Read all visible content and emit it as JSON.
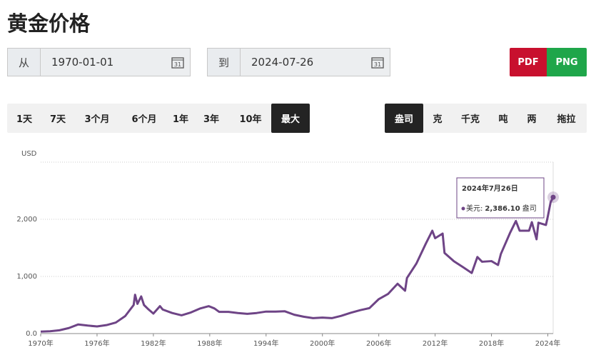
{
  "header": {
    "title": "黄金价格"
  },
  "controls": {
    "from_label": "从",
    "from_date": "1970-01-01",
    "to_label": "到",
    "to_date": "2024-07-26",
    "calendar_day": "31",
    "export": [
      "PDF",
      "PNG"
    ],
    "ranges": [
      "1天",
      "7天",
      "3个月",
      "6个月",
      "1年",
      "3年",
      "10年",
      "最大"
    ],
    "active_range": "最大",
    "units": [
      "盎司",
      "克",
      "千克",
      "吨",
      "两",
      "拖拉"
    ],
    "active_unit": "盎司"
  },
  "chart_data": {
    "type": "line",
    "y_label": "USD",
    "x": [
      1970,
      1971,
      1972,
      1973,
      1974,
      1975,
      1976,
      1977,
      1978,
      1979,
      1979.9,
      1980.05,
      1980.3,
      1980.7,
      1981,
      1981.5,
      1982,
      1982.7,
      1983,
      1984,
      1985,
      1986,
      1987,
      1987.9,
      1988.5,
      1989,
      1990,
      1991,
      1992,
      1993,
      1994,
      1995,
      1996,
      1997,
      1998,
      1999,
      2000,
      2001,
      2002,
      2003,
      2004,
      2005,
      2006,
      2007,
      2008,
      2008.8,
      2009,
      2010,
      2011,
      2011.7,
      2012,
      2012.8,
      2013,
      2014,
      2015,
      2015.9,
      2016.5,
      2017,
      2018,
      2018.7,
      2019,
      2020,
      2020.6,
      2021,
      2022,
      2022.3,
      2022.8,
      2023,
      2023.8,
      2024,
      2024.3,
      2024.57
    ],
    "series": [
      {
        "name": "美元",
        "color": "#6e4486",
        "values": [
          35,
          40,
          58,
          97,
          160,
          140,
          125,
          148,
          193,
          306,
          500,
          680,
          520,
          650,
          500,
          420,
          350,
          480,
          420,
          360,
          320,
          370,
          440,
          480,
          440,
          380,
          380,
          360,
          345,
          360,
          385,
          385,
          390,
          330,
          295,
          270,
          280,
          270,
          310,
          363,
          409,
          445,
          603,
          695,
          872,
          750,
          972,
          1224,
          1571,
          1800,
          1669,
          1750,
          1411,
          1266,
          1160,
          1060,
          1340,
          1257,
          1268,
          1200,
          1393,
          1770,
          1970,
          1800,
          1800,
          1950,
          1650,
          1940,
          1900,
          2050,
          2300,
          2386.1
        ]
      }
    ],
    "xlim": [
      1970,
      2024.57
    ],
    "xticks": [
      {
        "value": 1970,
        "label": "1970年"
      },
      {
        "value": 1976,
        "label": "1976年"
      },
      {
        "value": 1982,
        "label": "1982年"
      },
      {
        "value": 1988,
        "label": "1988年"
      },
      {
        "value": 1994,
        "label": "1994年"
      },
      {
        "value": 2000,
        "label": "2000年"
      },
      {
        "value": 2006,
        "label": "2006年"
      },
      {
        "value": 2012,
        "label": "2012年"
      },
      {
        "value": 2018,
        "label": "2018年"
      },
      {
        "value": 2024,
        "label": "2024年"
      }
    ],
    "ylim": [
      0,
      3000
    ],
    "yticks": [
      {
        "value": 0,
        "label": "0.0"
      },
      {
        "value": 1000,
        "label": "1,000"
      },
      {
        "value": 2000,
        "label": "2,000"
      }
    ],
    "grid": true,
    "tooltip": {
      "date": "2024年7月26日",
      "series_label": "美元:",
      "value_label": "2,386.10",
      "unit": "盎司"
    }
  }
}
